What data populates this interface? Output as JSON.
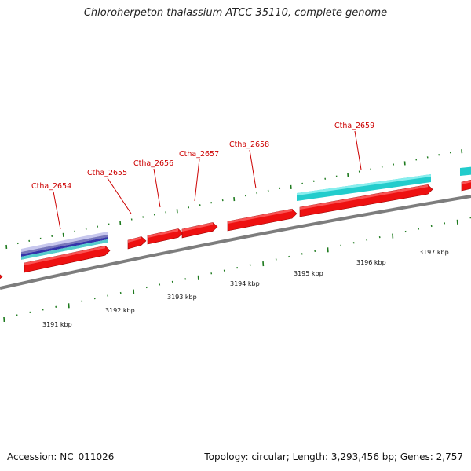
{
  "title": "Chloroherpeton thalassium ATCC 35110, complete genome",
  "footer": {
    "accession": "Accession: NC_011026",
    "summary": "Topology: circular; Length: 3,293,456 bp; Genes: 2,757"
  },
  "colors": {
    "backbone": "#7d7d7d",
    "gene_forward": "#ee1111",
    "gene_cyan": "#22cccc",
    "gene_label": "#cc0000",
    "tick": "#1e7a1e"
  },
  "gene_labels": [
    "Ctha_2654",
    "Ctha_2655",
    "Ctha_2656",
    "Ctha_2657",
    "Ctha_2658",
    "Ctha_2659"
  ],
  "kbp_ticks": [
    "3191 kbp",
    "3192 kbp",
    "3193 kbp",
    "3194 kbp",
    "3195 kbp",
    "3196 kbp",
    "3197 kbp"
  ]
}
